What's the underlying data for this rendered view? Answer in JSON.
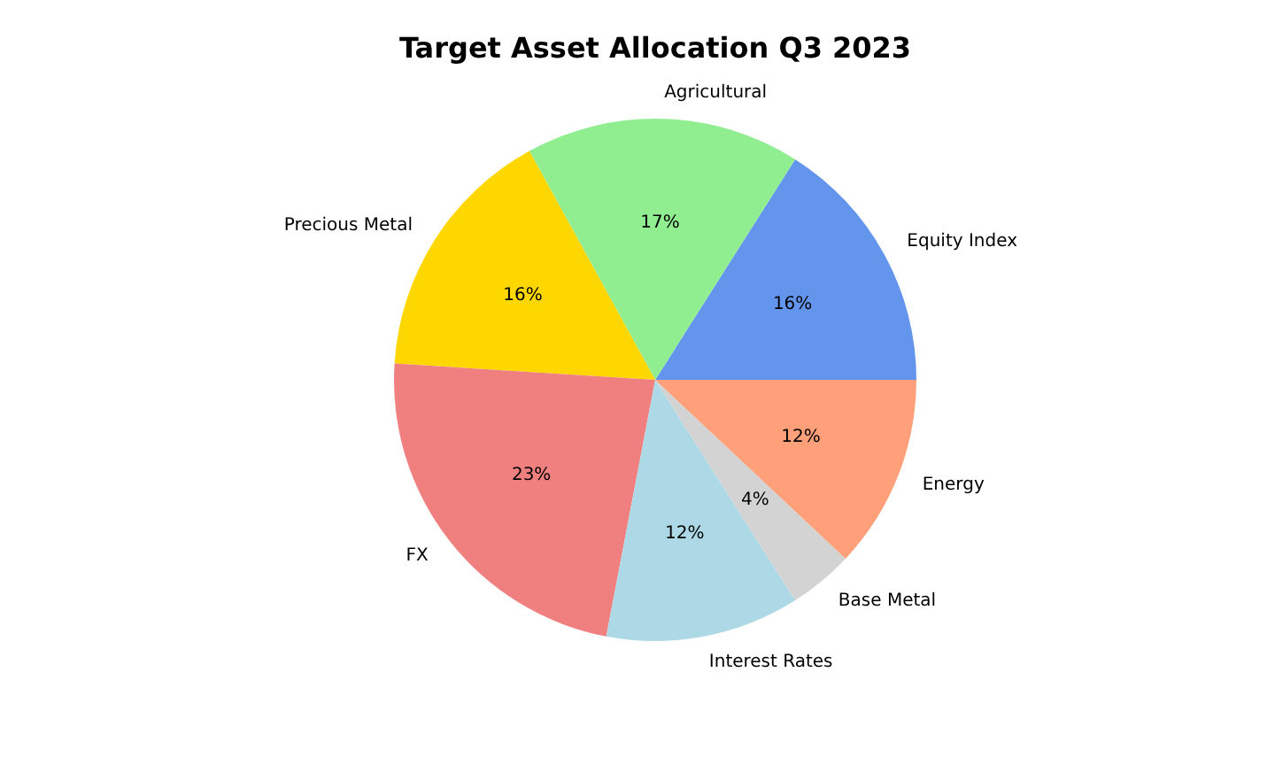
{
  "chart_data": {
    "type": "pie",
    "title": "Target Asset Allocation Q3 2023",
    "categories": [
      "Equity Index",
      "Agricultural",
      "Precious Metal",
      "FX",
      "Interest Rates",
      "Base Metal",
      "Energy"
    ],
    "values": [
      16,
      17,
      16,
      23,
      12,
      4,
      12
    ],
    "colors": [
      "#6495ed",
      "#90ee90",
      "#ffd700",
      "#f08080",
      "#add8e6",
      "#d3d3d3",
      "#ffa07a"
    ],
    "value_labels": [
      "16%",
      "17%",
      "16%",
      "23%",
      "12%",
      "4%",
      "12%"
    ]
  }
}
